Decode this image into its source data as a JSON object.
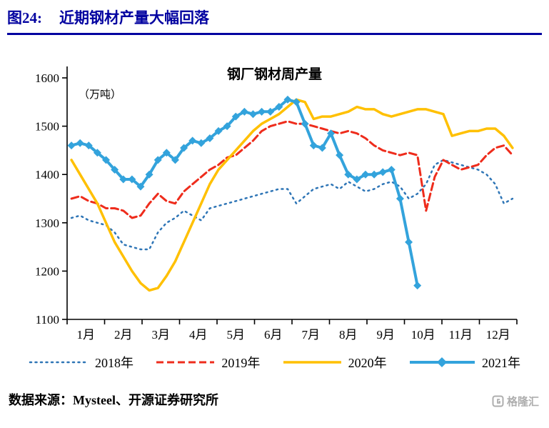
{
  "header": {
    "fig_label": "图24:",
    "title": "近期钢材产量大幅回落"
  },
  "footer": {
    "source": "数据来源：Mysteel、开源证券研究所",
    "logo_text": "格隆汇"
  },
  "colors": {
    "header_blue": "#0202A0",
    "logo_gray": "#A0A0A0"
  },
  "chart_data": {
    "type": "line",
    "title": "钢厂钢材周产量",
    "unit_label": "（万吨）",
    "ylim": [
      1100,
      1600
    ],
    "yticks": [
      1100,
      1200,
      1300,
      1400,
      1500,
      1600
    ],
    "x_labels": [
      "1月",
      "2月",
      "3月",
      "4月",
      "5月",
      "6月",
      "7月",
      "8月",
      "9月",
      "10月",
      "11月",
      "12月"
    ],
    "weeks_per_year": 52,
    "grid": false,
    "legend_position": "bottom",
    "series": [
      {
        "name": "2018年",
        "color": "#2E75B6",
        "style": "dotted",
        "width": 2.5,
        "dash": "2 5.5",
        "values": [
          1310,
          1315,
          1305,
          1300,
          1295,
          1280,
          1255,
          1250,
          1245,
          1245,
          1280,
          1300,
          1310,
          1325,
          1315,
          1305,
          1330,
          1335,
          1340,
          1345,
          1350,
          1355,
          1360,
          1365,
          1370,
          1370,
          1340,
          1355,
          1370,
          1375,
          1380,
          1370,
          1385,
          1375,
          1365,
          1370,
          1380,
          1385,
          1375,
          1350,
          1360,
          1380,
          1420,
          1430,
          1425,
          1420,
          1415,
          1410,
          1400,
          1380,
          1340,
          1350
        ]
      },
      {
        "name": "2019年",
        "color": "#EE2C1C",
        "style": "dashed",
        "width": 3,
        "dash": "10 5",
        "values": [
          1350,
          1355,
          1345,
          1340,
          1330,
          1330,
          1325,
          1310,
          1315,
          1340,
          1360,
          1345,
          1340,
          1365,
          1380,
          1395,
          1410,
          1420,
          1435,
          1440,
          1455,
          1470,
          1490,
          1500,
          1505,
          1510,
          1505,
          1505,
          1500,
          1495,
          1490,
          1485,
          1490,
          1485,
          1475,
          1460,
          1450,
          1445,
          1440,
          1445,
          1440,
          1325,
          1395,
          1430,
          1420,
          1410,
          1415,
          1420,
          1440,
          1455,
          1460,
          1440
        ]
      },
      {
        "name": "2020年",
        "color": "#FFC000",
        "style": "solid",
        "width": 3.5,
        "dash": "",
        "values": [
          1430,
          1400,
          1370,
          1340,
          1300,
          1260,
          1230,
          1200,
          1175,
          1160,
          1165,
          1190,
          1220,
          1260,
          1300,
          1340,
          1380,
          1410,
          1430,
          1450,
          1470,
          1490,
          1505,
          1515,
          1525,
          1540,
          1555,
          1550,
          1515,
          1520,
          1520,
          1525,
          1530,
          1540,
          1535,
          1535,
          1525,
          1520,
          1525,
          1530,
          1535,
          1535,
          1530,
          1525,
          1480,
          1485,
          1490,
          1490,
          1495,
          1495,
          1480,
          1455
        ]
      },
      {
        "name": "2021年",
        "color": "#33A3DC",
        "style": "solid",
        "width": 4,
        "dash": "",
        "marker": "diamond",
        "values": [
          1460,
          1465,
          1460,
          1445,
          1430,
          1410,
          1390,
          1390,
          1375,
          1400,
          1430,
          1445,
          1430,
          1455,
          1470,
          1465,
          1475,
          1490,
          1500,
          1520,
          1530,
          1525,
          1530,
          1530,
          1540,
          1555,
          1550,
          1505,
          1460,
          1455,
          1485,
          1440,
          1400,
          1390,
          1400,
          1400,
          1405,
          1410,
          1350,
          1260,
          1170
        ]
      }
    ]
  }
}
